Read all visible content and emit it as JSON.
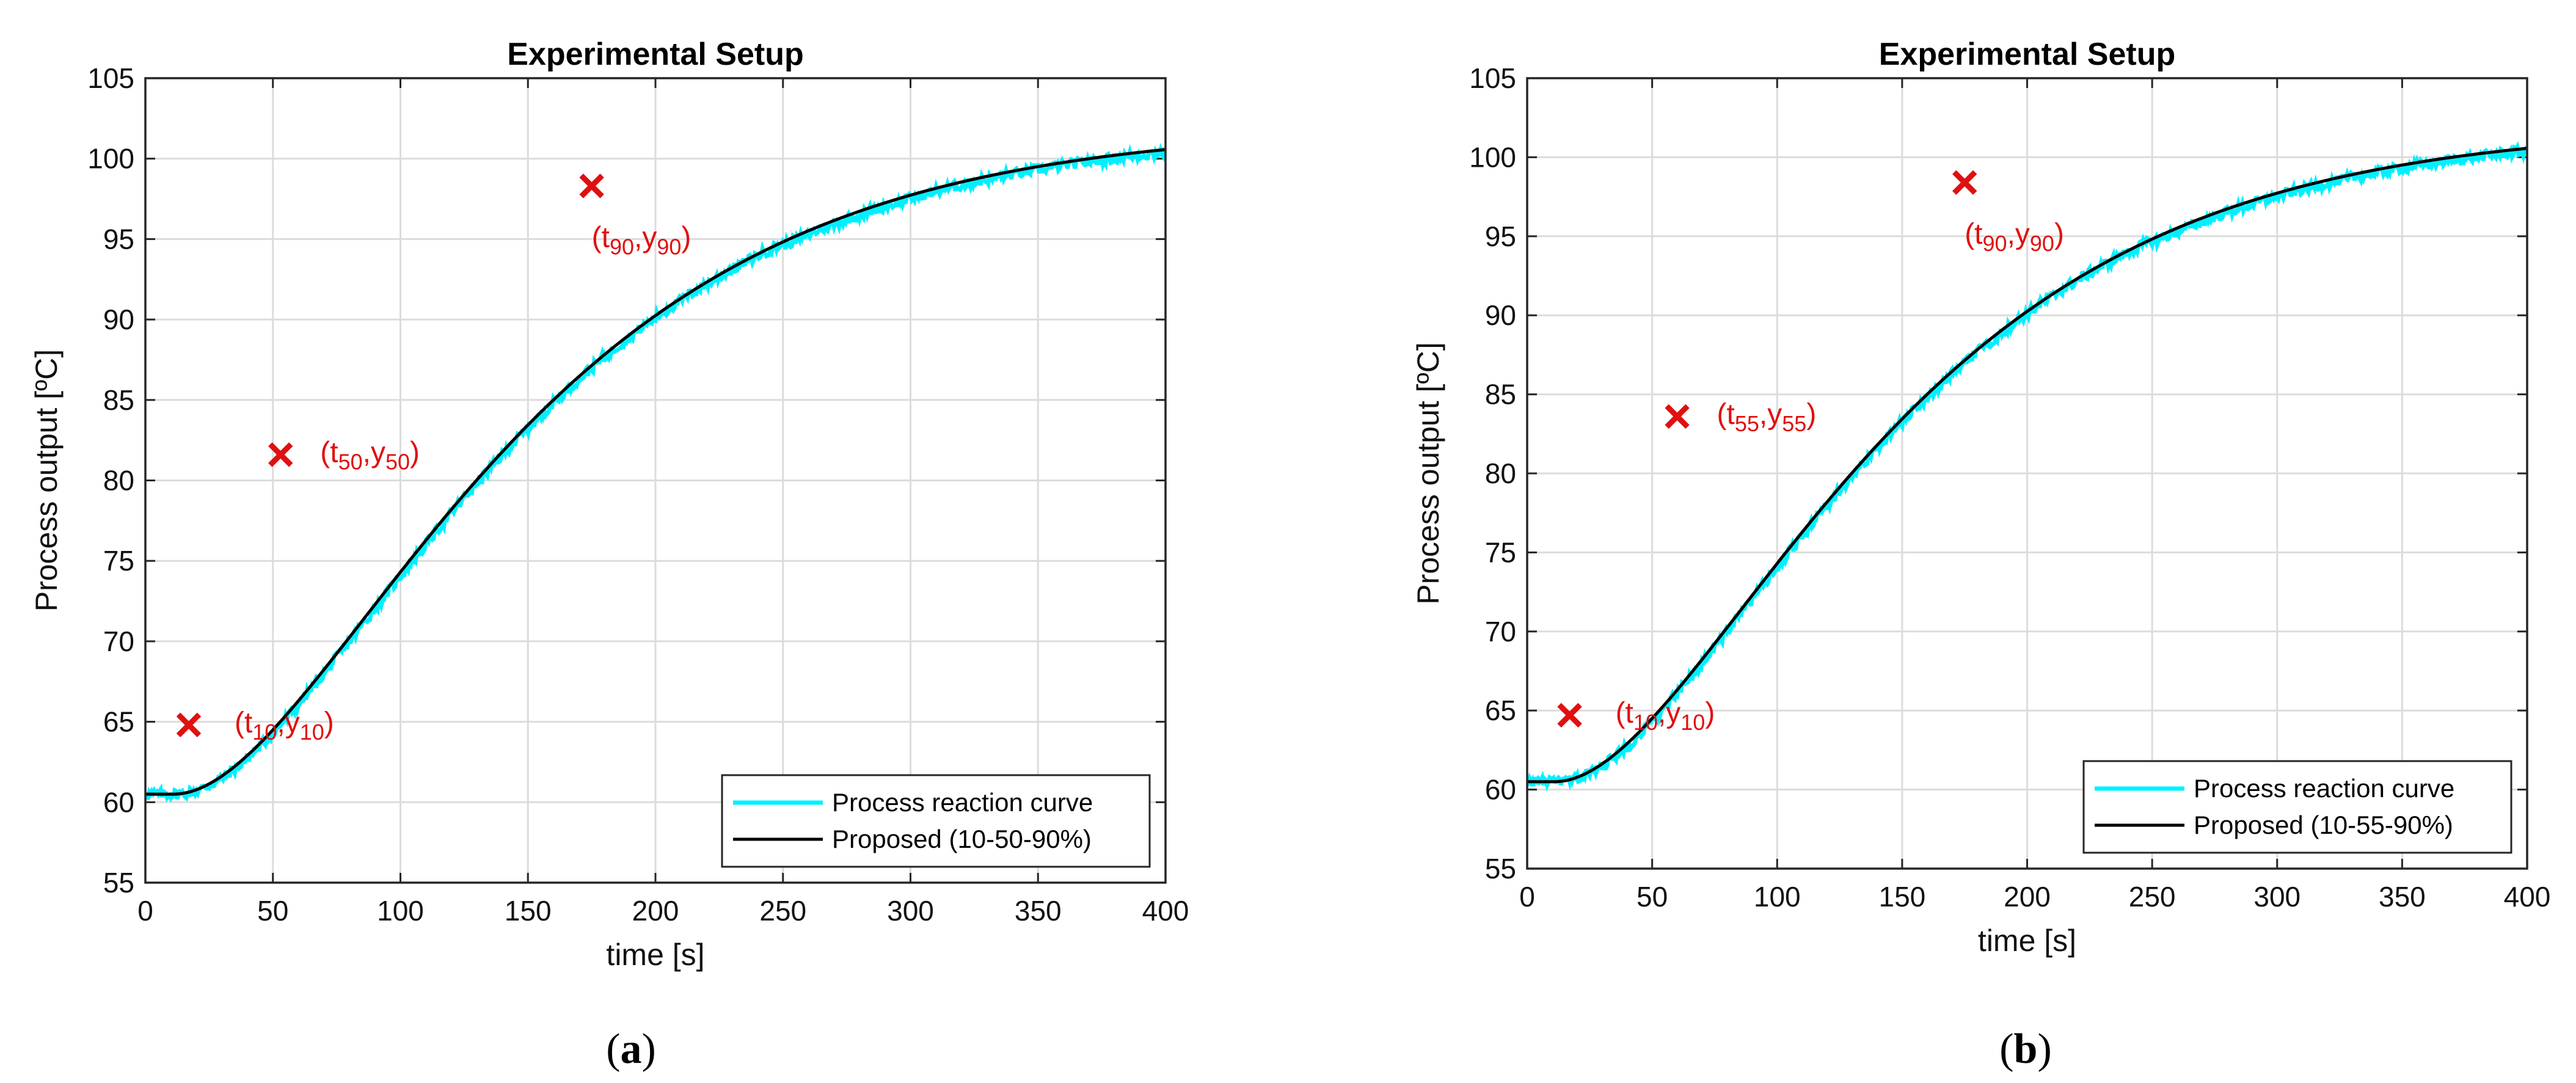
{
  "chart_data": [
    {
      "type": "line",
      "panel": "a",
      "caption_open": "(",
      "caption_letter": "a",
      "caption_close": ")",
      "title": "Experimental Setup",
      "xlabel": "time [s]",
      "ylabel": "Process output [ºC]",
      "xlim": [
        0,
        400
      ],
      "ylim": [
        55,
        105
      ],
      "xticks": [
        0,
        50,
        100,
        150,
        200,
        250,
        300,
        350,
        400
      ],
      "yticks": [
        55,
        60,
        65,
        70,
        75,
        80,
        85,
        90,
        95,
        100,
        105
      ],
      "grid": true,
      "legend_position": "bottom-right",
      "model": {
        "y0": 60.5,
        "gain": 41.5,
        "dead_time": 11,
        "tau": 75,
        "order": 2
      },
      "series": [
        {
          "name": "Process reaction curve",
          "color": "#00f0ff",
          "kind": "noisy-data"
        },
        {
          "name": "Proposed (10-50-90%)",
          "color": "#000000",
          "kind": "model"
        }
      ],
      "markers": [
        {
          "x": 17,
          "y": 64.8,
          "t": "10",
          "yl": "10"
        },
        {
          "x": 53,
          "y": 81.6,
          "t": "50",
          "yl": "50"
        },
        {
          "x": 175,
          "y": 98.3,
          "t": "90",
          "yl": "90"
        }
      ]
    },
    {
      "type": "line",
      "panel": "b",
      "caption_open": "(",
      "caption_letter": "b",
      "caption_close": ")",
      "title": "Experimental Setup",
      "xlabel": "time [s]",
      "ylabel": "Process output [ºC]",
      "xlim": [
        0,
        400
      ],
      "ylim": [
        55,
        105
      ],
      "xticks": [
        0,
        50,
        100,
        150,
        200,
        250,
        300,
        350,
        400
      ],
      "yticks": [
        55,
        60,
        65,
        70,
        75,
        80,
        85,
        90,
        95,
        100,
        105
      ],
      "grid": true,
      "legend_position": "bottom-right",
      "model": {
        "y0": 60.5,
        "gain": 41.5,
        "dead_time": 11,
        "tau": 75,
        "order": 2
      },
      "series": [
        {
          "name": "Process reaction curve",
          "color": "#00f0ff",
          "kind": "noisy-data"
        },
        {
          "name": "Proposed (10-55-90%)",
          "color": "#000000",
          "kind": "model"
        }
      ],
      "markers": [
        {
          "x": 17,
          "y": 64.7,
          "t": "10",
          "yl": "10"
        },
        {
          "x": 60,
          "y": 83.6,
          "t": "55",
          "yl": "55"
        },
        {
          "x": 175,
          "y": 98.4,
          "t": "90",
          "yl": "90"
        }
      ]
    }
  ],
  "marker_color": "#e01010"
}
